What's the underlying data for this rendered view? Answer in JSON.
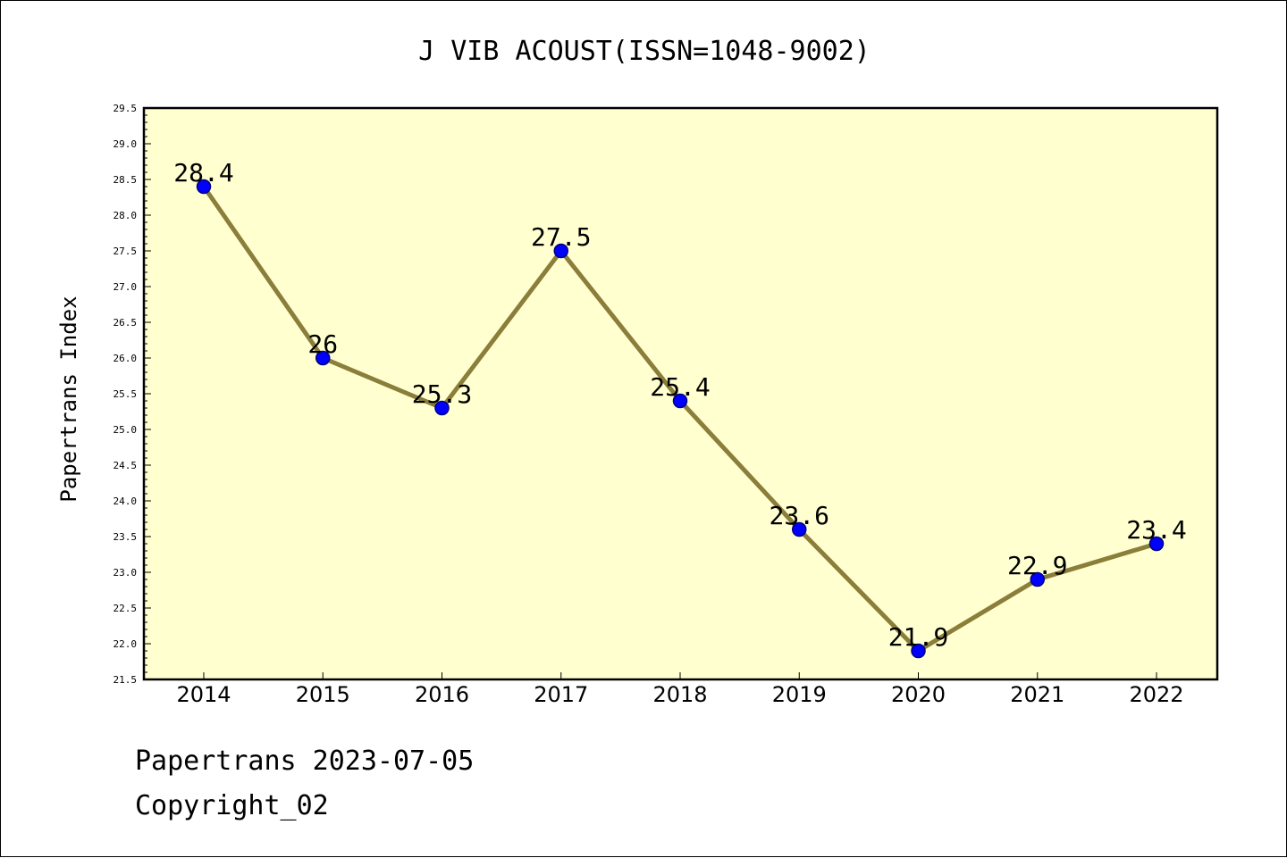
{
  "chart_data": {
    "type": "line",
    "title": "J VIB ACOUST(ISSN=1048-9002)",
    "xlabel": "",
    "ylabel": "Papertrans Index",
    "categories": [
      "2014",
      "2015",
      "2016",
      "2017",
      "2018",
      "2019",
      "2020",
      "2021",
      "2022"
    ],
    "series": [
      {
        "values": [
          28.4,
          26,
          25.3,
          27.5,
          25.4,
          23.6,
          21.9,
          22.9,
          23.4
        ],
        "labels": [
          "28.4",
          "26",
          "25.3",
          "27.5",
          "25.4",
          "23.6",
          "21.9",
          "22.9",
          "23.4"
        ]
      }
    ],
    "ylim": [
      21.5,
      29.5
    ],
    "yticks": [
      "21.5",
      "22.0",
      "22.5",
      "23.0",
      "23.5",
      "24.0",
      "24.5",
      "25.0",
      "25.5",
      "26.0",
      "26.5",
      "27.0",
      "27.5",
      "28.0",
      "28.5",
      "29.0",
      "29.5"
    ],
    "grid": false,
    "legend": "none",
    "colors": {
      "plot_background": "#ffffd0",
      "line": "#8b7d3a",
      "marker_fill": "#0000ff",
      "marker_edge": "#000080"
    }
  },
  "footer": {
    "line1": "Papertrans 2023-07-05",
    "line2": "Copyright_02"
  }
}
